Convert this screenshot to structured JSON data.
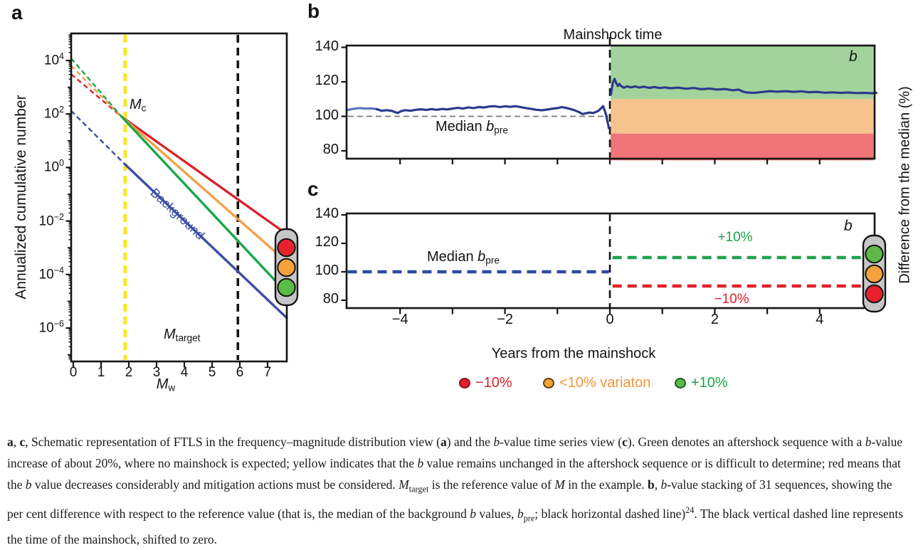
{
  "chart_data": [
    {
      "id": "a",
      "type": "line",
      "panel_letter": "a",
      "ylabel": "Annualized cumulative number",
      "xlabel_main": "M",
      "xlabel_sub": "w",
      "x_ticks": [
        0,
        1,
        2,
        3,
        4,
        5,
        6,
        7
      ],
      "y_tick_exponents": [
        4,
        2,
        0,
        -2,
        -4,
        -6
      ],
      "xlim": [
        -0.08,
        7.69
      ],
      "ylog_lim": [
        -7.25,
        5.0
      ],
      "annotations": {
        "mc_main": "M",
        "mc_sub": "c",
        "mtarget_main": "M",
        "mtarget_sub": "target",
        "background": "Background"
      },
      "vlines": [
        {
          "name": "completeness-magnitude-line",
          "m": 1.87,
          "color": "#f7e829",
          "width": 5
        },
        {
          "name": "target-magnitude-line",
          "m": 5.93,
          "color": "#141414",
          "width": 3.6
        }
      ],
      "series": [
        {
          "name": "red-aftershock-line",
          "color": "#da232b",
          "solid": [
            [
              1.74,
              1.9
            ],
            [
              7.69,
              -2.49
            ]
          ],
          "dashed": [
            [
              -0.08,
              3.49
            ],
            [
              1.74,
              1.9
            ]
          ]
        },
        {
          "name": "orange-aftershock-line",
          "color": "#f4a14b",
          "solid": [
            [
              1.74,
              1.9
            ],
            [
              7.69,
              -3.53
            ]
          ],
          "dashed": [
            [
              -0.08,
              3.81
            ],
            [
              1.74,
              1.9
            ]
          ]
        },
        {
          "name": "green-aftershock-line",
          "color": "#1aa64a",
          "solid": [
            [
              1.74,
              1.9
            ],
            [
              7.69,
              -4.69
            ]
          ],
          "dashed": [
            [
              -0.08,
              4.08
            ],
            [
              1.74,
              1.9
            ]
          ]
        },
        {
          "name": "background-line",
          "color": "#3a4fa1",
          "solid": [
            [
              1.87,
              0.11
            ],
            [
              7.69,
              -5.62
            ]
          ],
          "dashed": [
            [
              -0.08,
              2.12
            ],
            [
              1.87,
              0.11
            ]
          ]
        }
      ],
      "traffic_light_order": [
        "red",
        "orange",
        "green"
      ]
    },
    {
      "id": "b",
      "type": "line",
      "panel_letter": "b",
      "title": "Mainshock time",
      "corner_label": "b",
      "y_ticks": [
        140,
        120,
        100,
        80
      ],
      "ylim": [
        74.5,
        141
      ],
      "xlim": [
        -5.02,
        5.1
      ],
      "x_ticks_minor": [
        -4,
        -3,
        -2,
        -1,
        0,
        1,
        2,
        3,
        4
      ],
      "median_value": 100,
      "median_label_text": "Median ",
      "median_label_b": "b",
      "median_label_sub": "pre",
      "mainshock_time": 0,
      "bands": [
        {
          "name": "plus-band",
          "from": 110,
          "to": 141,
          "color": "#a3d39c"
        },
        {
          "name": "mid-band",
          "from": 90,
          "to": 110,
          "color": "#f6c28e"
        },
        {
          "name": "minus-band",
          "from": 74.5,
          "to": 90,
          "color": "#ee7477"
        }
      ],
      "series": [
        {
          "name": "stacked-b-pre-light",
          "color": "#5f73bd",
          "points": [
            [
              -5.02,
              103.6
            ],
            [
              -4.9,
              104.3
            ],
            [
              -4.78,
              104.8
            ],
            [
              -4.66,
              104.5
            ],
            [
              -4.55,
              104.6
            ],
            [
              -4.45,
              104.2
            ]
          ]
        },
        {
          "name": "stacked-b-pre",
          "color": "#2c3a8c",
          "points": [
            [
              -4.45,
              104.2
            ],
            [
              -4.35,
              103.2
            ],
            [
              -4.25,
              103.6
            ],
            [
              -4.15,
              103.1
            ],
            [
              -4.05,
              101.9
            ],
            [
              -3.98,
              103.0
            ],
            [
              -3.9,
              103.6
            ],
            [
              -3.8,
              103.2
            ],
            [
              -3.7,
              103.8
            ],
            [
              -3.6,
              104.1
            ],
            [
              -3.5,
              103.7
            ],
            [
              -3.4,
              104.2
            ],
            [
              -3.3,
              103.8
            ],
            [
              -3.2,
              104.3
            ],
            [
              -3.1,
              104.0
            ],
            [
              -3.0,
              104.5
            ],
            [
              -2.9,
              104.9
            ],
            [
              -2.8,
              104.5
            ],
            [
              -2.7,
              105.2
            ],
            [
              -2.6,
              104.8
            ],
            [
              -2.5,
              105.4
            ],
            [
              -2.4,
              105.1
            ],
            [
              -2.3,
              105.7
            ],
            [
              -2.2,
              105.9
            ],
            [
              -2.1,
              105.4
            ],
            [
              -2.0,
              105.8
            ],
            [
              -1.9,
              105.5
            ],
            [
              -1.8,
              105.9
            ],
            [
              -1.7,
              105.3
            ],
            [
              -1.6,
              104.8
            ],
            [
              -1.5,
              104.3
            ],
            [
              -1.4,
              103.8
            ],
            [
              -1.3,
              103.5
            ],
            [
              -1.2,
              103.9
            ],
            [
              -1.1,
              104.4
            ],
            [
              -1.0,
              104.8
            ],
            [
              -0.92,
              105.3
            ],
            [
              -0.84,
              104.9
            ],
            [
              -0.76,
              104.3
            ],
            [
              -0.68,
              103.6
            ],
            [
              -0.6,
              102.6
            ],
            [
              -0.52,
              101.3
            ],
            [
              -0.45,
              101.8
            ],
            [
              -0.38,
              102.2
            ],
            [
              -0.32,
              101.9
            ],
            [
              -0.26,
              102.6
            ],
            [
              -0.21,
              103.4
            ],
            [
              -0.17,
              104.6
            ],
            [
              -0.13,
              105.9
            ],
            [
              -0.1,
              103.5
            ],
            [
              -0.07,
              100.8
            ],
            [
              -0.05,
              97.5
            ],
            [
              -0.03,
              95.0
            ],
            [
              -0.02,
              93.2
            ]
          ]
        },
        {
          "name": "stacked-b-post",
          "color": "#2c3a8c",
          "points": [
            [
              0.02,
              112.8
            ],
            [
              0.04,
              116.5
            ],
            [
              0.06,
              119.8
            ],
            [
              0.09,
              121.7
            ],
            [
              0.12,
              119.4
            ],
            [
              0.15,
              117.6
            ],
            [
              0.18,
              118.8
            ],
            [
              0.22,
              117.4
            ],
            [
              0.27,
              116.6
            ],
            [
              0.33,
              117.4
            ],
            [
              0.4,
              116.8
            ],
            [
              0.48,
              117.3
            ],
            [
              0.56,
              116.7
            ],
            [
              0.65,
              117.2
            ],
            [
              0.75,
              116.5
            ],
            [
              0.85,
              117.0
            ],
            [
              0.95,
              116.4
            ],
            [
              1.05,
              116.8
            ],
            [
              1.15,
              116.3
            ],
            [
              1.3,
              116.6
            ],
            [
              1.45,
              116.0
            ],
            [
              1.6,
              116.4
            ],
            [
              1.75,
              115.7
            ],
            [
              1.9,
              116.1
            ],
            [
              2.05,
              115.5
            ],
            [
              2.2,
              115.8
            ],
            [
              2.35,
              115.1
            ],
            [
              2.45,
              115.5
            ],
            [
              2.55,
              114.2
            ],
            [
              2.62,
              113.8
            ],
            [
              2.75,
              113.6
            ],
            [
              2.9,
              114.1
            ],
            [
              3.05,
              114.6
            ],
            [
              3.2,
              114.3
            ],
            [
              3.35,
              114.6
            ],
            [
              3.5,
              114.2
            ],
            [
              3.65,
              114.5
            ],
            [
              3.8,
              114.0
            ],
            [
              3.95,
              114.2
            ],
            [
              4.1,
              113.7
            ],
            [
              4.25,
              113.9
            ],
            [
              4.4,
              113.6
            ],
            [
              4.55,
              113.8
            ],
            [
              4.7,
              113.5
            ],
            [
              4.85,
              113.6
            ],
            [
              5.0,
              113.4
            ],
            [
              5.08,
              113.6
            ]
          ]
        }
      ]
    },
    {
      "id": "c",
      "type": "line",
      "panel_letter": "c",
      "corner_label": "b",
      "y_ticks": [
        140,
        120,
        100,
        80
      ],
      "ylim": [
        74.5,
        141
      ],
      "xlim": [
        -5.02,
        5.1
      ],
      "x_ticks_major": [
        {
          "v": -4,
          "label": "−4"
        },
        {
          "v": -2,
          "label": "−2"
        },
        {
          "v": 0,
          "label": "0"
        },
        {
          "v": 2,
          "label": "2"
        },
        {
          "v": 4,
          "label": "4"
        }
      ],
      "x_ticks_minor": [
        -3,
        -1,
        1,
        3
      ],
      "xlabel": "Years from the mainshock",
      "median_label_text": "Median ",
      "median_label_b": "b",
      "median_label_sub": "pre",
      "hlines": [
        {
          "name": "median-pre-line",
          "value": 100,
          "t": [
            -5.0,
            -0.02
          ],
          "color": "#2b4da0"
        },
        {
          "name": "plus10-line",
          "value": 110,
          "t": [
            0.05,
            4.83
          ],
          "color": "#1fa24a",
          "label": "+10%"
        },
        {
          "name": "minus10-line",
          "value": 90,
          "t": [
            0.05,
            4.83
          ],
          "color": "#e0202a",
          "label": "−10%"
        }
      ],
      "traffic_light_order": [
        "green",
        "orange",
        "red"
      ]
    }
  ],
  "shared": {
    "right_axis_label": "Difference from the median (%)"
  },
  "traffic_light_style": {
    "body_color": "#c6c6c6",
    "outline": "#141414",
    "colors": {
      "red": "#e8212e",
      "orange": "#f5a23c",
      "green": "#5bbb46"
    }
  },
  "legend": {
    "items": [
      {
        "key": "red",
        "label": "−10%",
        "color": "#e8212e",
        "border": "#8a1219",
        "text_color": "#d8232a"
      },
      {
        "key": "orange",
        "label": "<10% variaton",
        "color": "#f5a23c",
        "border": "#5f3d12",
        "text_color": "#f0973d"
      },
      {
        "key": "green",
        "label": "+10%",
        "color": "#5bbb46",
        "border": "#1d5c24",
        "text_color": "#18a44a"
      }
    ]
  },
  "caption": {
    "segments": [
      {
        "s": "b",
        "t": "a"
      },
      {
        "s": "n",
        "t": ", "
      },
      {
        "s": "b",
        "t": "c"
      },
      {
        "s": "n",
        "t": ", Schematic representation of FTLS in the frequency–magnitude distribution view ("
      },
      {
        "s": "b",
        "t": "a"
      },
      {
        "s": "n",
        "t": ") and the "
      },
      {
        "s": "i",
        "t": "b"
      },
      {
        "s": "n",
        "t": "-value time series view ("
      },
      {
        "s": "b",
        "t": "c"
      },
      {
        "s": "n",
        "t": "). Green denotes an aftershock sequence with a "
      },
      {
        "s": "i",
        "t": "b"
      },
      {
        "s": "n",
        "t": "-value increase of about 20%, where no mainshock is expected; yellow indicates that the "
      },
      {
        "s": "i",
        "t": "b"
      },
      {
        "s": "n",
        "t": " value remains unchanged in the aftershock sequence or is difficult to determine; red means that the "
      },
      {
        "s": "i",
        "t": "b"
      },
      {
        "s": "n",
        "t": " value decreases considerably and mitigation actions must be considered. "
      },
      {
        "s": "i",
        "t": "M"
      },
      {
        "s": "sub",
        "t": "target"
      },
      {
        "s": "n",
        "t": " is the reference value of "
      },
      {
        "s": "i",
        "t": "M"
      },
      {
        "s": "n",
        "t": " in the example. "
      },
      {
        "s": "b",
        "t": "b"
      },
      {
        "s": "n",
        "t": ", "
      },
      {
        "s": "i",
        "t": "b"
      },
      {
        "s": "n",
        "t": "-value stacking of 31 sequences, showing the per cent difference with respect to the reference value (that is, the median of the background "
      },
      {
        "s": "i",
        "t": "b"
      },
      {
        "s": "n",
        "t": " values, "
      },
      {
        "s": "i",
        "t": "b"
      },
      {
        "s": "sub",
        "t": "pre"
      },
      {
        "s": "n",
        "t": "; black horizontal dashed line)"
      },
      {
        "s": "sup",
        "t": "24"
      },
      {
        "s": "n",
        "t": ". The black vertical dashed line represents the time of the mainshock, shifted to zero."
      }
    ]
  }
}
